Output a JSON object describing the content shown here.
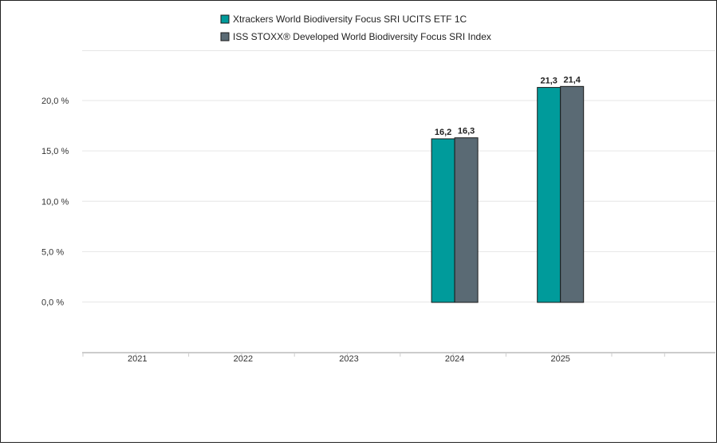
{
  "chart_data": {
    "type": "bar",
    "categories": [
      "2021",
      "2022",
      "2023",
      "2024",
      "2025"
    ],
    "series": [
      {
        "name": "Xtrackers World Biodiversity Focus SRI UCITS ETF 1C",
        "color": "#009b9b",
        "values": [
          null,
          null,
          null,
          16.2,
          21.3
        ],
        "labels": [
          "",
          "",
          "",
          "16,2",
          "21,3"
        ]
      },
      {
        "name": "ISS STOXX® Developed World Biodiversity Focus SRI Index",
        "color": "#5a6a74",
        "values": [
          null,
          null,
          null,
          16.3,
          21.4
        ],
        "labels": [
          "",
          "",
          "",
          "16,3",
          "21,4"
        ]
      }
    ],
    "yticks": [
      0,
      5,
      10,
      15,
      20
    ],
    "ytick_labels": [
      "0,0 %",
      "5,0 %",
      "10,0 %",
      "15,0 %",
      "20,0 %"
    ],
    "ylim": [
      -5,
      25
    ],
    "grid": true,
    "legend_position": "top-center"
  }
}
